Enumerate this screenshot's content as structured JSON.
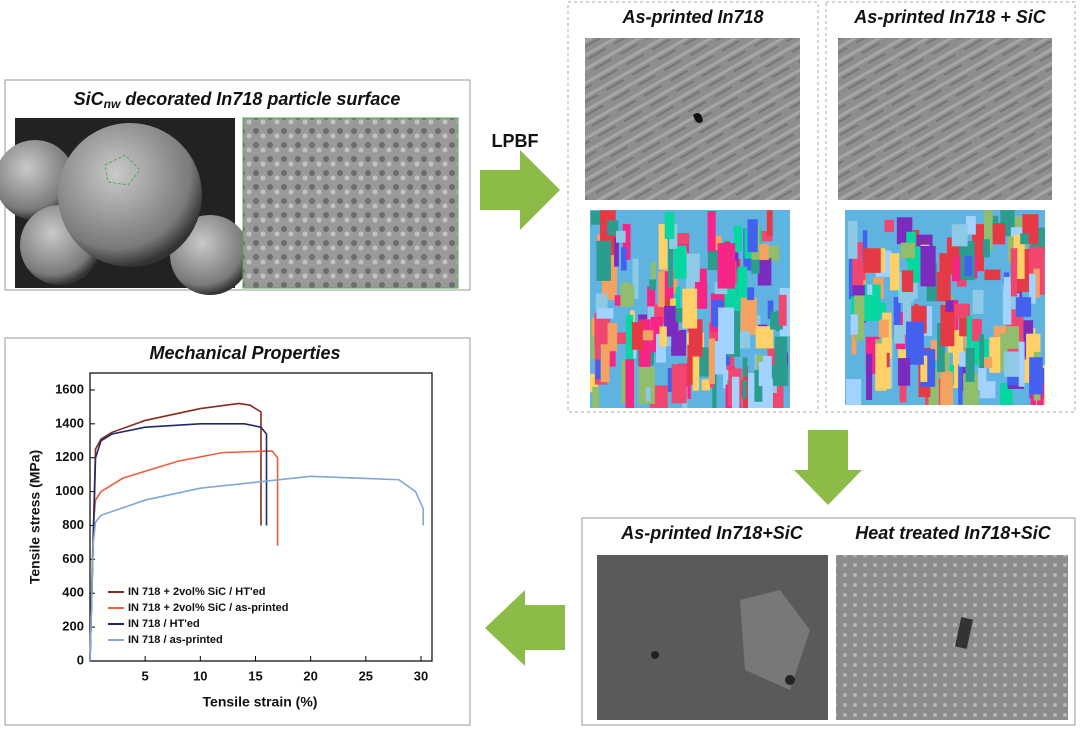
{
  "panels": {
    "particle": {
      "title_parts": [
        "SiC",
        "nw",
        " decorated In718 particle surface"
      ]
    },
    "process_label": "LPBF",
    "as_printed": {
      "title": "As-printed In718"
    },
    "as_printed_sic": {
      "title": "As-printed In718 + SiC"
    },
    "compare": {
      "left_title": "As-printed In718+SiC",
      "right_title": "Heat treated In718+SiC"
    }
  },
  "chart_data": {
    "type": "line",
    "title": "Mechanical Properties",
    "xlabel": "Tensile strain (%)",
    "ylabel": "Tensile stress (MPa)",
    "xlim": [
      0,
      31
    ],
    "xticks": [
      5,
      10,
      15,
      20,
      25,
      30
    ],
    "ylim": [
      0,
      1700
    ],
    "yticks": [
      0,
      200,
      400,
      600,
      800,
      1000,
      1200,
      1400,
      1600
    ],
    "series": [
      {
        "name": "IN 718 + 2vol% SiC / HT'ed",
        "color": "#8b2a1a",
        "x": [
          0,
          0.5,
          1,
          2,
          5,
          10,
          13.5,
          14.5,
          15.5,
          15.5
        ],
        "values": [
          0,
          1250,
          1310,
          1350,
          1420,
          1490,
          1520,
          1510,
          1470,
          800
        ]
      },
      {
        "name": "IN 718 + 2vol% SiC / as-printed",
        "color": "#e8603c",
        "x": [
          0,
          0.3,
          0.5,
          1,
          3,
          8,
          12,
          16.5,
          17,
          17
        ],
        "values": [
          0,
          800,
          950,
          1000,
          1080,
          1180,
          1230,
          1240,
          1200,
          680
        ]
      },
      {
        "name": "IN 718 / HT'ed",
        "color": "#1f2a6b",
        "x": [
          0,
          0.5,
          1,
          2,
          5,
          10,
          14,
          15.5,
          16,
          16
        ],
        "values": [
          0,
          1200,
          1300,
          1340,
          1380,
          1400,
          1400,
          1380,
          1340,
          800
        ]
      },
      {
        "name": "IN 718 / as-printed",
        "color": "#7fa7d8",
        "x": [
          0,
          0.3,
          0.5,
          1,
          5,
          10,
          20,
          28,
          29.5,
          30.2,
          30.2
        ],
        "values": [
          0,
          700,
          820,
          860,
          950,
          1020,
          1090,
          1070,
          1000,
          900,
          800
        ]
      }
    ]
  }
}
